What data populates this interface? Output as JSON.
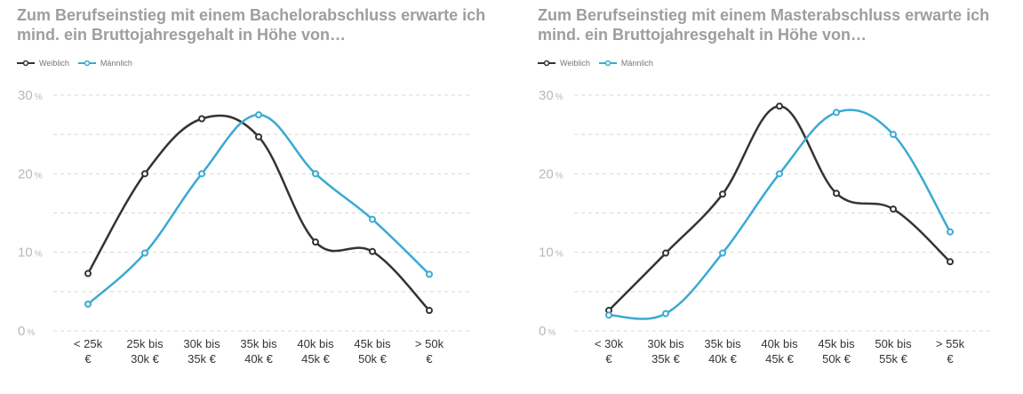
{
  "colors": {
    "weiblich": "#333333",
    "maennlich": "#3aaad2",
    "grid": "#d8d8d8",
    "title": "#9e9e9e"
  },
  "chart_data": [
    {
      "type": "line",
      "title": "Zum Berufseinstieg mit einem Bachelorabschluss erwarte ich mind. ein Bruttojahresgehalt in Höhe von…",
      "categories": [
        [
          "< 25k",
          "€"
        ],
        [
          "25k  bis",
          "30k €"
        ],
        [
          "30k  bis",
          "35k €"
        ],
        [
          "35k  bis",
          "40k €"
        ],
        [
          "40k  bis",
          "45k €"
        ],
        [
          "45k  bis",
          "50k €"
        ],
        [
          "> 50k",
          "€"
        ]
      ],
      "ylim": [
        0,
        30
      ],
      "yticks": [
        0,
        10,
        20,
        30
      ],
      "ytick_unit": "%",
      "grid": true,
      "legend": "top-left",
      "series": [
        {
          "name": "Weiblich",
          "values": [
            7.3,
            20,
            27,
            24.7,
            11.3,
            10.1,
            2.6
          ]
        },
        {
          "name": "Männlich",
          "values": [
            3.4,
            9.9,
            20,
            27.5,
            20,
            14.2,
            7.2
          ]
        }
      ]
    },
    {
      "type": "line",
      "title": "Zum Berufseinstieg mit einem Masterabschluss erwarte ich mind. ein Bruttojahresgehalt in Höhe von…",
      "categories": [
        [
          "< 30k",
          "€"
        ],
        [
          "30k  bis",
          "35k €"
        ],
        [
          "35k  bis",
          "40k €"
        ],
        [
          "40k  bis",
          "45k €"
        ],
        [
          "45k  bis",
          "50k €"
        ],
        [
          "50k  bis",
          "55k €"
        ],
        [
          "> 55k",
          "€"
        ]
      ],
      "ylim": [
        0,
        30
      ],
      "yticks": [
        0,
        10,
        20,
        30
      ],
      "ytick_unit": "%",
      "grid": true,
      "legend": "top-left",
      "series": [
        {
          "name": "Weiblich",
          "values": [
            2.6,
            9.9,
            17.4,
            28.6,
            17.5,
            15.5,
            8.8
          ]
        },
        {
          "name": "Männlich",
          "values": [
            2,
            2.2,
            9.9,
            20,
            27.8,
            25,
            12.6
          ]
        }
      ]
    }
  ]
}
